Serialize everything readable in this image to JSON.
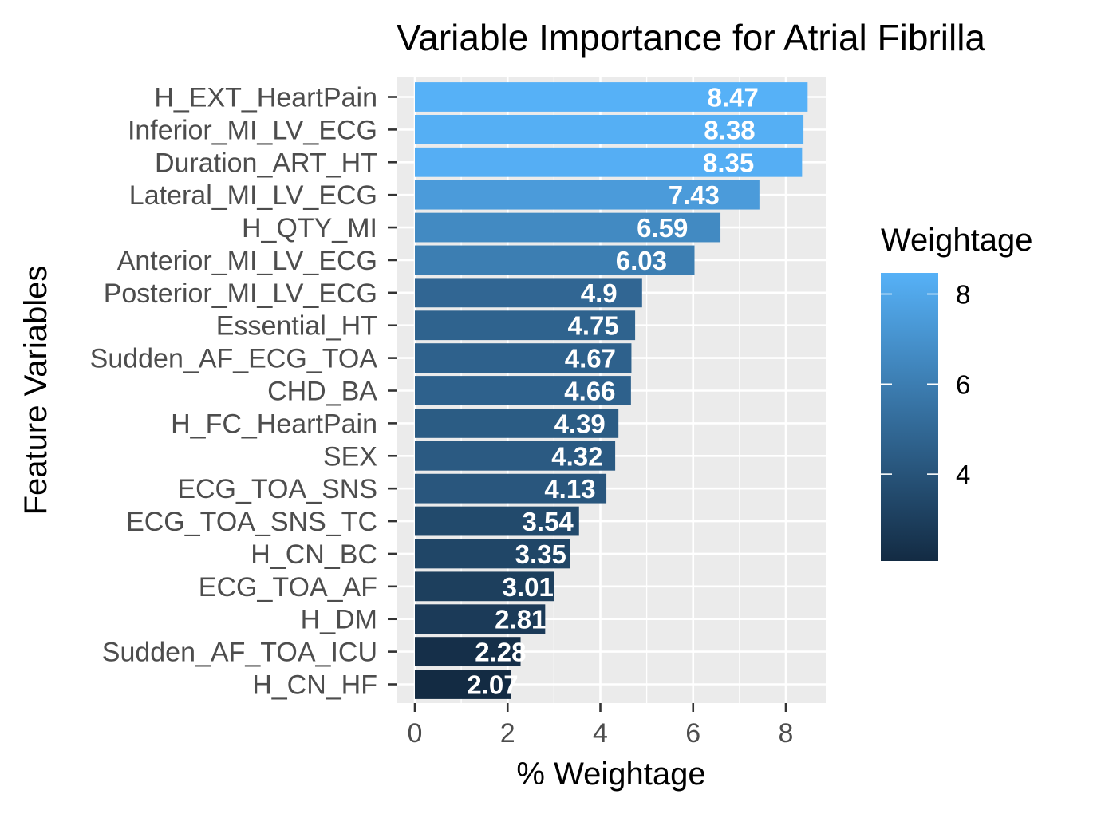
{
  "chart_data": {
    "type": "bar",
    "orientation": "horizontal",
    "title": "Variable Importance for Atrial Fibrilla",
    "xlabel": "% Weightage",
    "ylabel": "Feature Variables",
    "xlim": [
      0,
      8.9
    ],
    "x_ticks": [
      0,
      2,
      4,
      6,
      8
    ],
    "grid": true,
    "legend": {
      "title": "Weightage",
      "position": "right",
      "type": "colorbar",
      "ticks": [
        4,
        6,
        8
      ],
      "range": [
        2.07,
        8.47
      ],
      "color_low": "#132B43",
      "color_high": "#56B1F7"
    },
    "categories": [
      "H_EXT_HeartPain",
      "Inferior_MI_LV_ECG",
      "Duration_ART_HT",
      "Lateral_MI_LV_ECG",
      "H_QTY_MI",
      "Anterior_MI_LV_ECG",
      "Posterior_MI_LV_ECG",
      "Essential_HT",
      "Sudden_AF_ECG_TOA",
      "CHD_BA",
      "H_FC_HeartPain",
      "SEX",
      "ECG_TOA_SNS",
      "ECG_TOA_SNS_TC",
      "H_CN_BC",
      "ECG_TOA_AF",
      "H_DM",
      "Sudden_AF_TOA_ICU",
      "H_CN_HF"
    ],
    "values": [
      8.47,
      8.38,
      8.35,
      7.43,
      6.59,
      6.03,
      4.9,
      4.75,
      4.67,
      4.66,
      4.39,
      4.32,
      4.13,
      3.54,
      3.35,
      3.01,
      2.81,
      2.28,
      2.07
    ],
    "data_labels": [
      "8.47",
      "8.38",
      "8.35",
      "7.43",
      "6.59",
      "6.03",
      "4.9",
      "4.75",
      "4.67",
      "4.66",
      "4.39",
      "4.32",
      "4.13",
      "3.54",
      "3.35",
      "3.01",
      "2.81",
      "2.28",
      "2.07"
    ]
  }
}
